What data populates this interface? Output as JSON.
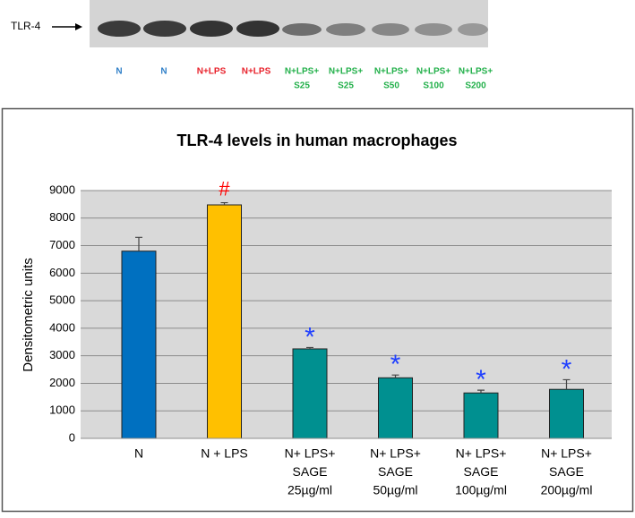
{
  "blot": {
    "label": "TLR-4",
    "lanes": [
      {
        "lines": [
          "N"
        ],
        "color": "#2f7fc8"
      },
      {
        "lines": [
          "N"
        ],
        "color": "#2f7fc8"
      },
      {
        "lines": [
          "N+LPS"
        ],
        "color": "#e8202a"
      },
      {
        "lines": [
          "N+LPS"
        ],
        "color": "#e8202a"
      },
      {
        "lines": [
          "N+LPS+",
          "S25"
        ],
        "color": "#22b04a"
      },
      {
        "lines": [
          "N+LPS+",
          "S25"
        ],
        "color": "#22b04a"
      },
      {
        "lines": [
          "N+LPS+",
          "S50"
        ],
        "color": "#22b04a"
      },
      {
        "lines": [
          "N+LPS+",
          "S100"
        ],
        "color": "#22b04a"
      },
      {
        "lines": [
          "N+LPS+",
          "S200"
        ],
        "color": "#22b04a"
      }
    ]
  },
  "chart_data": {
    "type": "bar",
    "title": "TLR-4 levels in human macrophages",
    "y_label": "Densitometric units",
    "categories": [
      [
        "N"
      ],
      [
        "N + LPS"
      ],
      [
        "N+ LPS+",
        "SAGE",
        "25µg/ml"
      ],
      [
        "N+ LPS+",
        "SAGE",
        "50µg/ml"
      ],
      [
        "N+ LPS+",
        "SAGE",
        "100µg/ml"
      ],
      [
        "N+ LPS+",
        "SAGE",
        "200µg/ml"
      ]
    ],
    "values": [
      6800,
      8480,
      3250,
      2200,
      1650,
      1780
    ],
    "errors": [
      500,
      80,
      50,
      100,
      100,
      350
    ],
    "colors": [
      "#0070c0",
      "#ffc000",
      "#009090",
      "#009090",
      "#009090",
      "#009090"
    ],
    "annotations": [
      null,
      "#",
      "*",
      "*",
      "*",
      "*"
    ],
    "annotation_colors": [
      null,
      "#ff0000",
      "#1f3fff",
      "#1f3fff",
      "#1f3fff",
      "#1f3fff"
    ],
    "ylim": [
      0,
      9000
    ],
    "yticks": [
      0,
      1000,
      2000,
      3000,
      4000,
      5000,
      6000,
      7000,
      8000,
      9000
    ],
    "grid": true
  }
}
